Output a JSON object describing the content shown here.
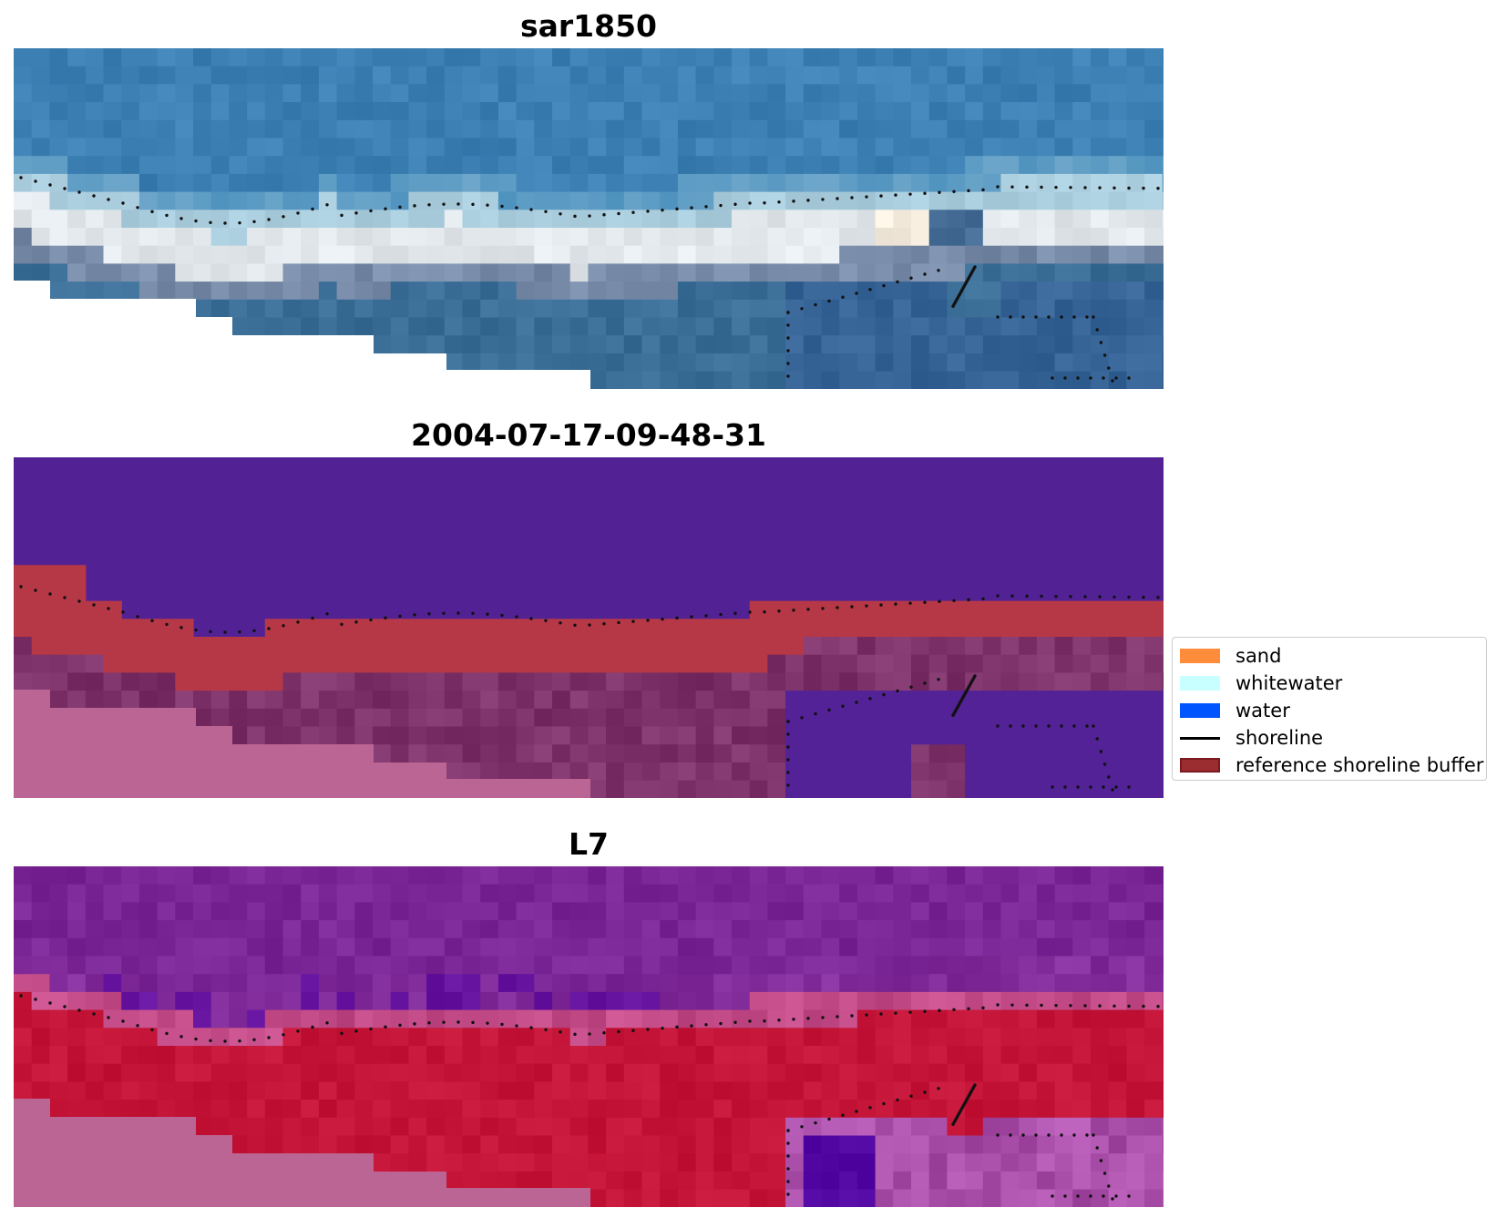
{
  "panels": [
    {
      "title": "sar1850",
      "kind": "rgb-image"
    },
    {
      "title": "2004-07-17-09-48-31",
      "kind": "classification-overlay"
    },
    {
      "title": "L7",
      "kind": "false-color-image"
    }
  ],
  "legend": {
    "placement": "center-right",
    "items": [
      {
        "label": "sand",
        "type": "patch",
        "color": "#ff8c3a"
      },
      {
        "label": "whitewater",
        "type": "patch",
        "color": "#c8ffff"
      },
      {
        "label": "water",
        "type": "patch",
        "color": "#0055ff"
      },
      {
        "label": "shoreline",
        "type": "line",
        "color": "#000000"
      },
      {
        "label": "reference shoreline buffer",
        "type": "patch",
        "color": "#9b2d30",
        "edge": "#7a1a1e"
      }
    ]
  }
}
